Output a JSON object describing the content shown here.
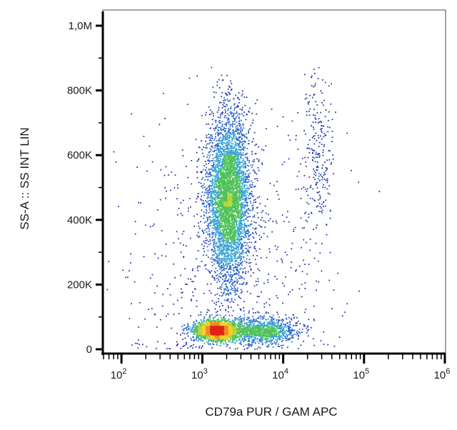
{
  "chart_data": {
    "type": "scatter",
    "title": "",
    "xlabel": "CD79a PUR / GAM APC",
    "ylabel": "SS-A :: SS INT LIN",
    "x_scale": "log",
    "xlim": [
      60,
      1000000
    ],
    "ylim": [
      0,
      1000000
    ],
    "grid": false,
    "coloring": "point density (blue low → green → yellow → red high)",
    "x_tick_labels": [
      {
        "value": 100,
        "base": "10",
        "exp": "2"
      },
      {
        "value": 1000,
        "base": "10",
        "exp": "3"
      },
      {
        "value": 10000,
        "base": "10",
        "exp": "4"
      },
      {
        "value": 100000,
        "base": "10",
        "exp": "5"
      },
      {
        "value": 1000000,
        "base": "10",
        "exp": "6"
      }
    ],
    "y_tick_labels": [
      {
        "value": 0,
        "label": "0"
      },
      {
        "value": 200000,
        "label": "200K"
      },
      {
        "value": 400000,
        "label": "400K"
      },
      {
        "value": 600000,
        "label": "600K"
      },
      {
        "value": 800000,
        "label": "800K"
      },
      {
        "value": 1000000,
        "label": "1,0M"
      }
    ],
    "populations": [
      {
        "x_center": 1500,
        "y_center": 60000,
        "x_spread_log10": 0.14,
        "y_spread": 15000,
        "relative_size": 0.28
      },
      {
        "x_center": 2100,
        "y_center": 470000,
        "x_spread_log10": 0.13,
        "y_spread": 130000,
        "relative_size": 0.5
      },
      {
        "x_center": 5500,
        "y_center": 60000,
        "x_spread_log10": 0.22,
        "y_spread": 20000,
        "relative_size": 0.12
      },
      {
        "x_center": 25000,
        "y_center": 600000,
        "x_spread_log10": 0.1,
        "y_spread": 150000,
        "relative_size": 0.03
      },
      {
        "x_center": 2000,
        "y_center": 300000,
        "x_spread_log10": 0.6,
        "y_spread": 220000,
        "relative_size": 0.07
      }
    ],
    "density_colors": [
      "#2a3aa8",
      "#2f67c8",
      "#39a5d6",
      "#4fc25a",
      "#b7d437",
      "#f0d02a",
      "#f08a1e",
      "#e02417"
    ]
  }
}
